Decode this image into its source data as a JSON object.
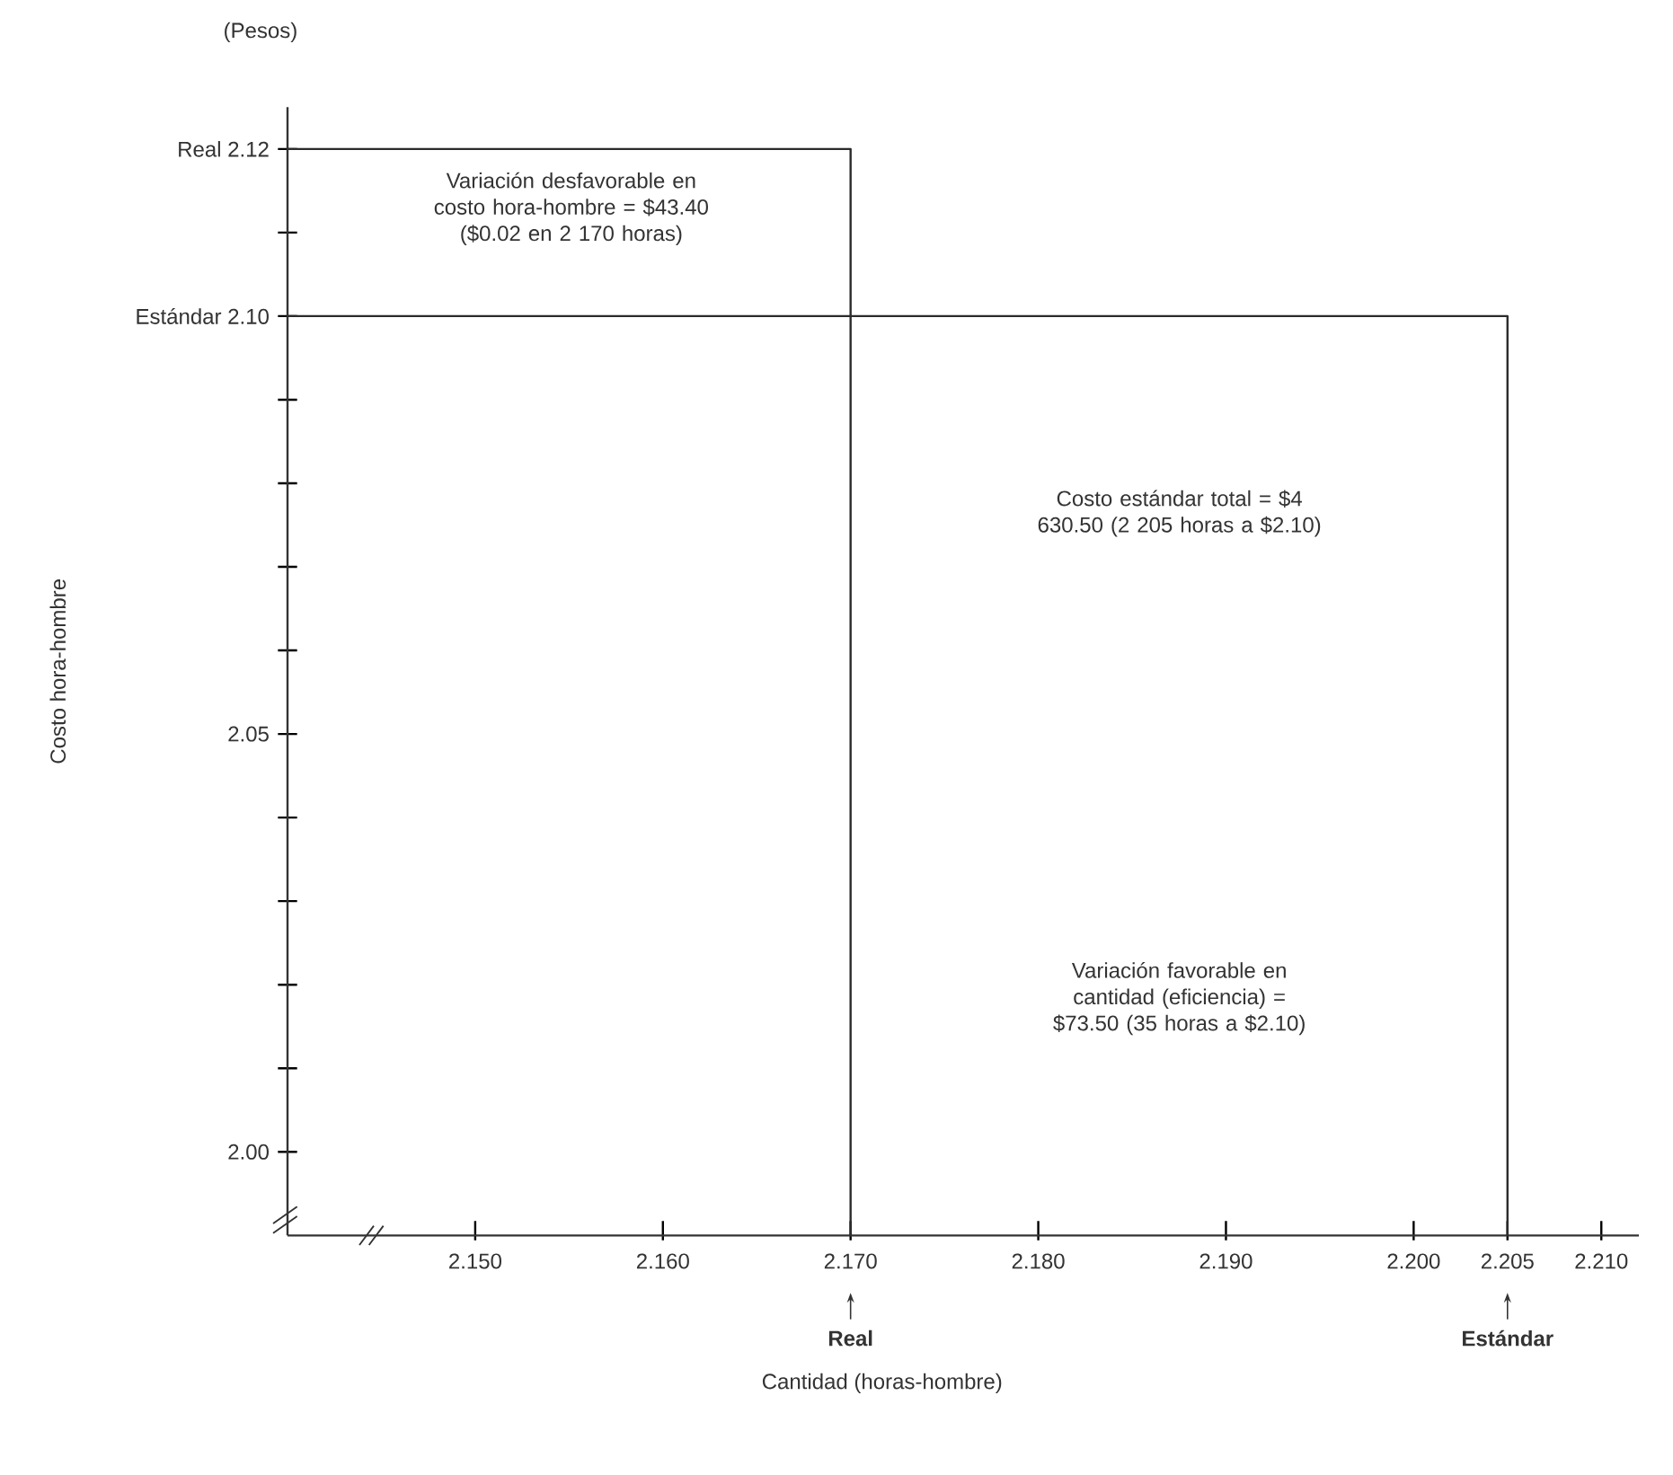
{
  "chart_data": {
    "type": "line",
    "xlabel": "Cantidad (horas-hombre)",
    "ylabel": "Costo hora-hombre",
    "xlim": [
      2.14,
      2.212
    ],
    "ylim": [
      1.99,
      2.125
    ],
    "xticks": [
      {
        "value": 2.15,
        "label": "2.150"
      },
      {
        "value": 2.16,
        "label": "2.160"
      },
      {
        "value": 2.17,
        "label": "2.170"
      },
      {
        "value": 2.18,
        "label": "2.180"
      },
      {
        "value": 2.19,
        "label": "2.190"
      },
      {
        "value": 2.2,
        "label": "2.200"
      },
      2.205,
      {
        "value": 2.21,
        "label": "2.210"
      }
    ],
    "yticks": [
      {
        "value": 2,
        "label": "2.00"
      },
      {
        "value": 2.01,
        "label": null
      },
      {
        "value": 2.02,
        "label": null
      },
      {
        "value": 2.03,
        "label": null
      },
      {
        "value": 2.04,
        "label": null
      },
      2.05,
      {
        "value": 2.06,
        "label": null
      },
      {
        "value": 2.07,
        "label": null
      },
      {
        "value": 2.08,
        "label": null
      },
      {
        "value": 2.09,
        "label": null
      },
      {
        "value": 2.1,
        "label": "Estándar 2.10"
      },
      {
        "value": 2.11,
        "label": null
      },
      {
        "value": 2.12,
        "label": "Real 2.12"
      }
    ],
    "series": [
      {
        "color": "#2b2b2b",
        "x": [
          2.14,
          2.17,
          2.17
        ],
        "values": [
          2.12,
          2.12,
          1.99
        ]
      },
      {
        "color": "#2b2b2b",
        "x": [
          2.14,
          2.205,
          2.205
        ],
        "values": [
          2.1,
          2.1,
          1.99
        ]
      }
    ],
    "annotations": [
      "(Pesos)",
      "Variación desfavorable en costo hora-hombre = $43.40 ($0.02 en 2 170 horas)",
      "Costo estándar total = $4 630.50 (2 205 horas a $2.10)",
      "Variación favorable en cantidad (eficiencia) = $73.50 (35 horas a $2.10)",
      {
        "text": "Real",
        "x": 2.17
      },
      {
        "text": "Estándar",
        "x": 2.205
      }
    ]
  }
}
